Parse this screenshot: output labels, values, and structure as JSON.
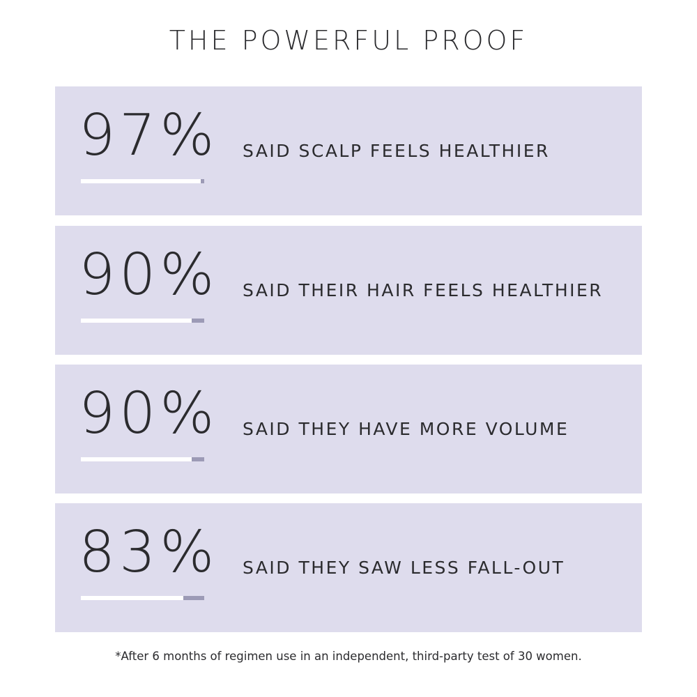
{
  "title": "THE POWERFUL PROOF",
  "items": [
    {
      "value": 97,
      "value_label": "97%",
      "text": "SAID SCALP FEELS HEALTHIER"
    },
    {
      "value": 90,
      "value_label": "90%",
      "text": "SAID THEIR HAIR FEELS HEALTHIER"
    },
    {
      "value": 90,
      "value_label": "90%",
      "text": "SAID THEY HAVE MORE VOLUME"
    },
    {
      "value": 83,
      "value_label": "83%",
      "text": "SAID THEY SAW LESS FALL-OUT"
    }
  ],
  "footnote": "*After 6 months of regimen use in an independent, third-party test of 30 women."
}
